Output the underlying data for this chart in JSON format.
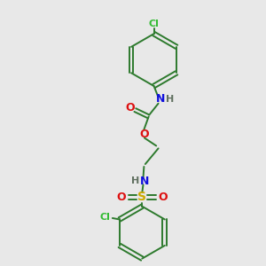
{
  "bg_color": "#e8e8e8",
  "bond_color": "#2d7a2d",
  "atom_colors": {
    "C": "#2d7a2d",
    "H": "#607060",
    "N": "#1010dd",
    "O": "#dd1010",
    "S": "#ccaa00",
    "Cl": "#33bb33"
  },
  "figsize": [
    3.0,
    3.0
  ],
  "dpi": 100
}
